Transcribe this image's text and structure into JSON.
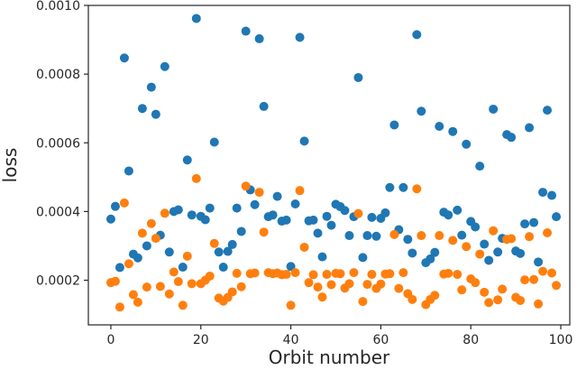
{
  "chart_data": {
    "type": "scatter",
    "xlabel": "Orbit number",
    "ylabel": "loss",
    "xlim": [
      -5,
      102
    ],
    "ylim": [
      7e-05,
      0.001
    ],
    "xticks": [
      0,
      20,
      40,
      60,
      80,
      100
    ],
    "xtick_labels": [
      "0",
      "20",
      "40",
      "60",
      "80",
      "100"
    ],
    "yticks": [
      0.0002,
      0.0004,
      0.0006,
      0.0008,
      0.001
    ],
    "ytick_labels": [
      "0.0002",
      "0.0004",
      "0.0006",
      "0.0008",
      "0.0010"
    ],
    "grid": false,
    "legend": "none",
    "series": [
      {
        "color": "#1f77b4",
        "x": [
          0,
          1,
          2,
          3,
          4,
          5,
          6,
          7,
          8,
          9,
          10,
          11,
          12,
          13,
          14,
          15,
          16,
          17,
          18,
          19,
          20,
          21,
          22,
          23,
          24,
          25,
          26,
          27,
          28,
          29,
          30,
          31,
          32,
          33,
          34,
          35,
          36,
          37,
          38,
          39,
          40,
          41,
          42,
          43,
          44,
          45,
          46,
          47,
          48,
          49,
          50,
          51,
          52,
          53,
          54,
          55,
          56,
          57,
          58,
          59,
          60,
          61,
          62,
          63,
          64,
          65,
          66,
          67,
          68,
          69,
          70,
          71,
          72,
          73,
          74,
          75,
          76,
          77,
          78,
          79,
          80,
          81,
          82,
          83,
          84,
          85,
          86,
          87,
          88,
          89,
          90,
          91,
          92,
          93,
          94,
          95,
          96,
          97,
          98,
          99
        ],
        "y": [
          0.000378,
          0.000415,
          0.000237,
          0.000847,
          0.000518,
          0.000276,
          0.000265,
          0.0007,
          0.0003,
          0.000762,
          0.000683,
          0.000331,
          0.000822,
          0.000282,
          0.0004,
          0.000405,
          0.000238,
          0.00055,
          0.00039,
          0.000962,
          0.000386,
          0.000376,
          0.00041,
          0.000602,
          0.000282,
          0.000238,
          0.000284,
          0.000304,
          0.00041,
          0.000342,
          0.000925,
          0.000463,
          0.00042,
          0.000903,
          0.000706,
          0.000385,
          0.00039,
          0.000444,
          0.000372,
          0.000375,
          0.00024,
          0.000422,
          0.000907,
          0.000605,
          0.000373,
          0.000375,
          0.000337,
          0.000268,
          0.000386,
          0.00036,
          0.000421,
          0.000414,
          0.000403,
          0.00033,
          0.000385,
          0.00079,
          0.000266,
          0.00033,
          0.000383,
          0.000328,
          0.00038,
          0.000396,
          0.00047,
          0.000652,
          0.000347,
          0.00047,
          0.000319,
          0.000279,
          0.000915,
          0.000692,
          0.000251,
          0.000262,
          0.000281,
          0.000648,
          0.000398,
          0.00039,
          0.000633,
          0.000404,
          0.000331,
          0.000596,
          0.000371,
          0.000355,
          0.000532,
          0.000305,
          0.000258,
          0.000698,
          0.000282,
          0.000322,
          0.000624,
          0.000616,
          0.000285,
          0.000278,
          0.000364,
          0.000644,
          0.000368,
          0.000253,
          0.000456,
          0.000695,
          0.000447,
          0.000385
        ]
      },
      {
        "color": "#ff7f0e",
        "x": [
          0,
          1,
          2,
          3,
          4,
          5,
          6,
          7,
          8,
          9,
          10,
          11,
          12,
          13,
          14,
          15,
          16,
          17,
          18,
          19,
          20,
          21,
          22,
          23,
          24,
          25,
          26,
          27,
          28,
          29,
          30,
          31,
          32,
          33,
          34,
          35,
          36,
          37,
          38,
          39,
          40,
          41,
          42,
          43,
          44,
          45,
          46,
          47,
          48,
          49,
          50,
          51,
          52,
          53,
          54,
          55,
          56,
          57,
          58,
          59,
          60,
          61,
          62,
          63,
          64,
          65,
          66,
          67,
          68,
          69,
          70,
          71,
          72,
          73,
          74,
          75,
          76,
          77,
          78,
          79,
          80,
          81,
          82,
          83,
          84,
          85,
          86,
          87,
          88,
          89,
          90,
          91,
          92,
          93,
          94,
          95,
          96,
          97,
          98,
          99
        ],
        "y": [
          0.000193,
          0.000197,
          0.000122,
          0.000425,
          0.000248,
          0.000158,
          0.000136,
          0.000337,
          0.00018,
          0.000365,
          0.000322,
          0.000182,
          0.000395,
          0.00016,
          0.000224,
          0.000196,
          0.000127,
          0.00027,
          0.00019,
          0.000496,
          0.00019,
          0.0002,
          0.000212,
          0.000307,
          0.000148,
          0.000139,
          0.00015,
          0.000166,
          0.00022,
          0.000181,
          0.000474,
          0.000219,
          0.000221,
          0.000456,
          0.00034,
          0.000222,
          0.000219,
          0.000221,
          0.000216,
          0.000217,
          0.000127,
          0.000222,
          0.000461,
          0.000296,
          0.000193,
          0.000216,
          0.00018,
          0.000151,
          0.000217,
          0.000187,
          0.00022,
          0.000219,
          0.000177,
          0.00019,
          0.000222,
          0.000394,
          0.000138,
          0.000188,
          0.000217,
          0.000176,
          0.000189,
          0.000218,
          0.000219,
          0.000333,
          0.000176,
          0.000222,
          0.000161,
          0.000144,
          0.000466,
          0.00033,
          0.000129,
          0.000144,
          0.000156,
          0.00033,
          0.000218,
          0.00022,
          0.000316,
          0.000217,
          0.000172,
          0.000298,
          0.000204,
          0.000193,
          0.000276,
          0.000165,
          0.000135,
          0.000344,
          0.000143,
          0.000174,
          0.000319,
          0.000321,
          0.00015,
          0.000141,
          0.000201,
          0.000327,
          0.000202,
          0.000131,
          0.000226,
          0.000338,
          0.000221,
          0.000185
        ]
      }
    ]
  }
}
